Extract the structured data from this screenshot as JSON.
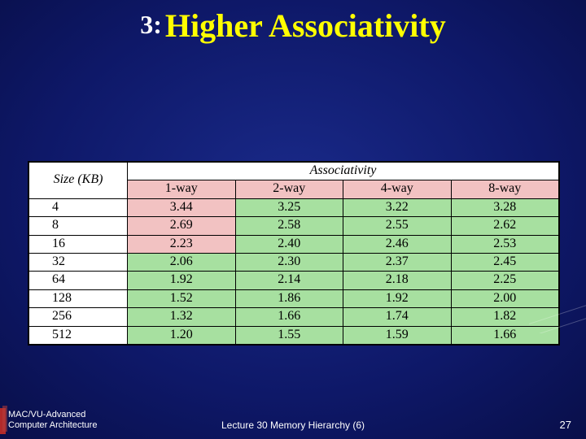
{
  "title": {
    "prefix": "3:",
    "main": "Higher Associativity"
  },
  "table": {
    "size_header": "Size (KB)",
    "assoc_header": "Associativity",
    "sub_headers": [
      "1-way",
      "2-way",
      "4-way",
      "8-way"
    ],
    "header_bg_pink": "#f2c2c2",
    "cell_bg_green": "#a7e0a0",
    "cell_bg_white": "#ffffff",
    "fontsize": 16,
    "rows": [
      {
        "size": "4",
        "cells": [
          {
            "v": "3.44",
            "c": "pink"
          },
          {
            "v": "3.25",
            "c": "green"
          },
          {
            "v": "3.22",
            "c": "green"
          },
          {
            "v": "3.28",
            "c": "green"
          }
        ]
      },
      {
        "size": "8",
        "cells": [
          {
            "v": "2.69",
            "c": "pink"
          },
          {
            "v": "2.58",
            "c": "green"
          },
          {
            "v": "2.55",
            "c": "green"
          },
          {
            "v": "2.62",
            "c": "green"
          }
        ]
      },
      {
        "size": "16",
        "cells": [
          {
            "v": "2.23",
            "c": "pink"
          },
          {
            "v": "2.40",
            "c": "green"
          },
          {
            "v": "2.46",
            "c": "green"
          },
          {
            "v": "2.53",
            "c": "green"
          }
        ]
      },
      {
        "size": "32",
        "cells": [
          {
            "v": "2.06",
            "c": "green"
          },
          {
            "v": "2.30",
            "c": "green"
          },
          {
            "v": "2.37",
            "c": "green"
          },
          {
            "v": "2.45",
            "c": "green"
          }
        ]
      },
      {
        "size": "64",
        "cells": [
          {
            "v": "1.92",
            "c": "green"
          },
          {
            "v": "2.14",
            "c": "green"
          },
          {
            "v": "2.18",
            "c": "green"
          },
          {
            "v": "2.25",
            "c": "green"
          }
        ]
      },
      {
        "size": "128",
        "cells": [
          {
            "v": "1.52",
            "c": "green"
          },
          {
            "v": "1.86",
            "c": "green"
          },
          {
            "v": "1.92",
            "c": "green"
          },
          {
            "v": "2.00",
            "c": "green"
          }
        ]
      },
      {
        "size": "256",
        "cells": [
          {
            "v": "1.32",
            "c": "green"
          },
          {
            "v": "1.66",
            "c": "green"
          },
          {
            "v": "1.74",
            "c": "green"
          },
          {
            "v": "1.82",
            "c": "green"
          }
        ]
      },
      {
        "size": "512",
        "cells": [
          {
            "v": "1.20",
            "c": "green"
          },
          {
            "v": "1.55",
            "c": "green"
          },
          {
            "v": "1.59",
            "c": "green"
          },
          {
            "v": "1.66",
            "c": "green"
          }
        ]
      }
    ]
  },
  "footer": {
    "left_line1": "MAC/VU-Advanced",
    "left_line2": "Computer Architecture",
    "center": "Lecture 30 Memory Hierarchy (6)",
    "page": "27"
  }
}
